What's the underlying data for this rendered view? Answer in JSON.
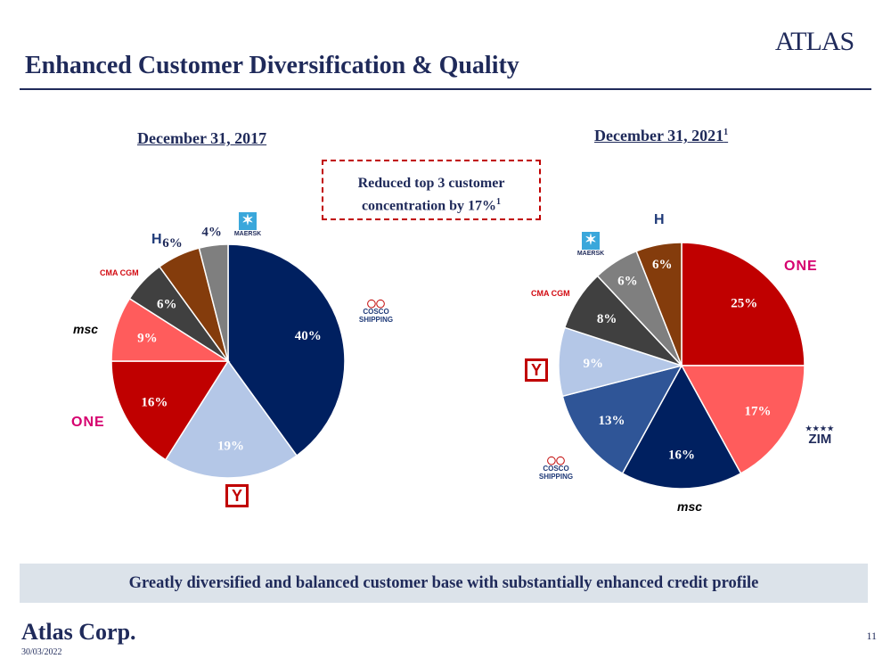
{
  "header": {
    "title": "Enhanced Customer Diversification & Quality",
    "logo_text": "ATLAS"
  },
  "callout": {
    "line1": "Reduced top 3 customer",
    "line2": "concentration by 17%",
    "sup": "1"
  },
  "banner": "Greatly diversified and balanced customer base with substantially enhanced credit profile",
  "footer": {
    "company": "Atlas Corp.",
    "date": "30/03/2022",
    "page": "11"
  },
  "customer_logos": {
    "one": "ONE",
    "msc": "msc",
    "cma": "CMA CGM",
    "maersk": "MAERSK",
    "ym": "Y",
    "cosco": "COSCO SHIPPING",
    "zim": "ZIM",
    "hapag": "H"
  },
  "chart_data": [
    {
      "type": "pie",
      "title": "December 31, 2017",
      "title_sup": "",
      "slices": [
        {
          "logo": "cosco",
          "value": 40,
          "label": "40%",
          "color": "#002060"
        },
        {
          "logo": "ym",
          "value": 19,
          "label": "19%",
          "color": "#b4c7e7"
        },
        {
          "logo": "one",
          "value": 16,
          "label": "16%",
          "color": "#c00000"
        },
        {
          "logo": "msc",
          "value": 9,
          "label": "9%",
          "color": "#ff5c5c"
        },
        {
          "logo": "cma",
          "value": 6,
          "label": "6%",
          "color": "#404040"
        },
        {
          "logo": "hapag",
          "value": 6,
          "label": "6%",
          "color": "#843c0c"
        },
        {
          "logo": "maersk",
          "value": 4,
          "label": "4%",
          "color": "#7f7f7f"
        }
      ]
    },
    {
      "type": "pie",
      "title": "December 31, 2021",
      "title_sup": "1",
      "slices": [
        {
          "logo": "one",
          "value": 25,
          "label": "25%",
          "color": "#c00000"
        },
        {
          "logo": "zim",
          "value": 17,
          "label": "17%",
          "color": "#ff5c5c"
        },
        {
          "logo": "msc",
          "value": 16,
          "label": "16%",
          "color": "#002060"
        },
        {
          "logo": "cosco",
          "value": 13,
          "label": "13%",
          "color": "#2f5597"
        },
        {
          "logo": "ym",
          "value": 9,
          "label": "9%",
          "color": "#b4c7e7"
        },
        {
          "logo": "cma",
          "value": 8,
          "label": "8%",
          "color": "#404040"
        },
        {
          "logo": "maersk",
          "value": 6,
          "label": "6%",
          "color": "#7f7f7f"
        },
        {
          "logo": "hapag",
          "value": 6,
          "label": "6%",
          "color": "#843c0c"
        }
      ]
    }
  ]
}
